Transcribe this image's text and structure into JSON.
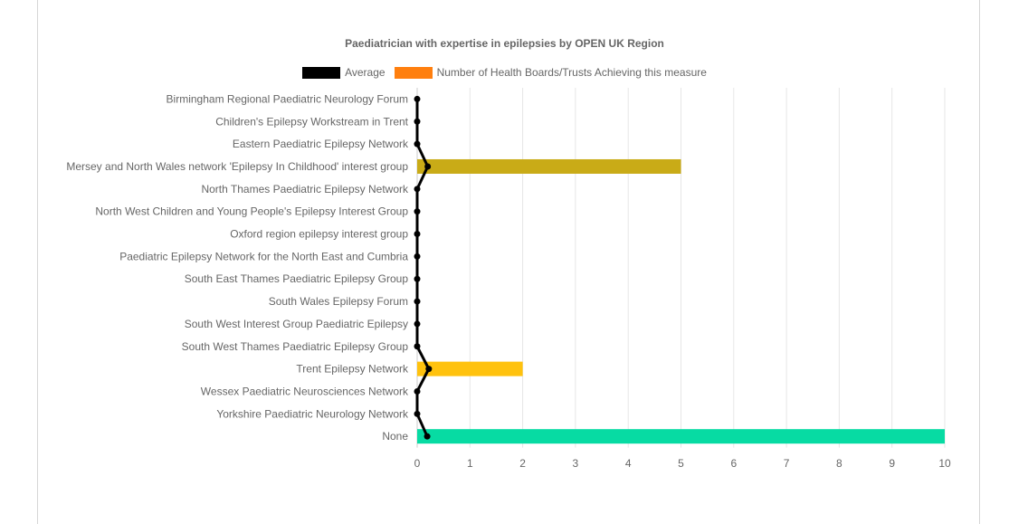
{
  "chart_data": {
    "type": "bar",
    "orientation": "horizontal",
    "title": "Paediatrician with expertise in epilepsies by OPEN UK Region",
    "legend_position": "top",
    "categories": [
      "Birmingham Regional Paediatric Neurology Forum",
      "Children's Epilepsy Workstream in Trent",
      "Eastern Paediatric Epilepsy Network",
      "Mersey and North Wales network 'Epilepsy In Childhood' interest group",
      "North Thames Paediatric Epilepsy Network",
      "North West Children and Young People's Epilepsy Interest Group",
      "Oxford region epilepsy interest group",
      "Paediatric Epilepsy Network for the North East and Cumbria",
      "South East Thames Paediatric Epilepsy Group",
      "South Wales Epilepsy Forum",
      "South West Interest Group Paediatric Epilepsy",
      "South West Thames Paediatric Epilepsy Group",
      "Trent Epilepsy Network",
      "Wessex Paediatric Neurosciences Network",
      "Yorkshire Paediatric Neurology Network",
      "None"
    ],
    "series": [
      {
        "name": "Number of Health Boards/Trusts Achieving this measure",
        "type": "bar",
        "legend_color": "#ff7f0e",
        "values": [
          0,
          0,
          0,
          5,
          0,
          0,
          0,
          0,
          0,
          0,
          0,
          0,
          2,
          0,
          0,
          10
        ],
        "colors": [
          "#4c78a8",
          "#4c78a8",
          "#4c78a8",
          "#c9ab17",
          "#4c78a8",
          "#4c78a8",
          "#4c78a8",
          "#4c78a8",
          "#4c78a8",
          "#4c78a8",
          "#4c78a8",
          "#4c78a8",
          "#ffc20e",
          "#4c78a8",
          "#4c78a8",
          "#07dba3"
        ]
      },
      {
        "name": "Average",
        "type": "line",
        "color": "#000000",
        "values": [
          0,
          0,
          0,
          0.2,
          0,
          0,
          0,
          0,
          0,
          0,
          0,
          0,
          0.22,
          0,
          0,
          0.19
        ]
      }
    ],
    "xlim": [
      0,
      10
    ],
    "xticks": [
      "0",
      "1",
      "2",
      "3",
      "4",
      "5",
      "6",
      "7",
      "8",
      "9",
      "10"
    ],
    "grid": true
  }
}
